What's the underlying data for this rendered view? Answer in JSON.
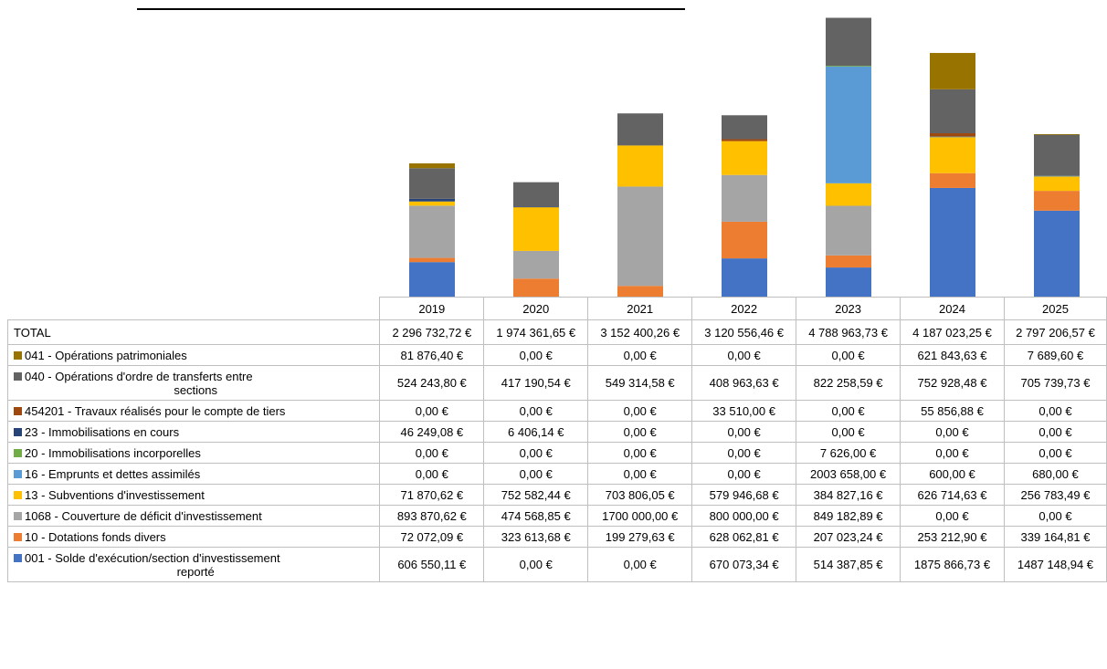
{
  "chart_data": {
    "type": "bar",
    "stacked": true,
    "title": "",
    "xlabel": "",
    "ylabel": "",
    "ylim": [
      0,
      5000000
    ],
    "grid": false,
    "legend": "data table",
    "categories": [
      "2019",
      "2020",
      "2021",
      "2022",
      "2023",
      "2024",
      "2025"
    ],
    "total_label": "TOTAL",
    "totals": [
      "2 296 732,72 €",
      "1 974 361,65 €",
      "3 152 400,26 €",
      "3 120 556,46 €",
      "4 788 963,73 €",
      "4 187 023,25 €",
      "2 797 206,57 €"
    ],
    "series": [
      {
        "name": "001 - Solde d'exécution/section d'investissement reporté",
        "label_lines": [
          "001 - Solde d'exécution/section d'investissement",
          "reporté"
        ],
        "color": "#4472c4",
        "values": [
          606550.11,
          0,
          0,
          670073.34,
          514387.85,
          1875866.73,
          1487148.94
        ],
        "labels": [
          "606 550,11 €",
          "0,00 €",
          "0,00 €",
          "670 073,34 €",
          "514 387,85 €",
          "1875 866,73 €",
          "1487 148,94 €"
        ]
      },
      {
        "name": "10 - Dotations fonds divers",
        "color": "#ed7d31",
        "values": [
          72072.09,
          323613.68,
          199279.63,
          628062.81,
          207023.24,
          253212.9,
          339164.81
        ],
        "labels": [
          "72 072,09 €",
          "323 613,68 €",
          "199 279,63 €",
          "628 062,81 €",
          "207 023,24 €",
          "253 212,90 €",
          "339 164,81 €"
        ]
      },
      {
        "name": "1068 - Couverture de déficit d'investissement",
        "color": "#a5a5a5",
        "values": [
          893870.62,
          474568.85,
          1700000,
          800000,
          849182.89,
          0,
          0
        ],
        "labels": [
          "893 870,62 €",
          "474 568,85 €",
          "1700 000,00 €",
          "800 000,00 €",
          "849 182,89 €",
          "0,00 €",
          "0,00 €"
        ]
      },
      {
        "name": "13 - Subventions d'investissement",
        "color": "#ffc000",
        "values": [
          71870.62,
          752582.44,
          703806.05,
          579946.68,
          384827.16,
          626714.63,
          256783.49
        ],
        "labels": [
          "71 870,62 €",
          "752 582,44 €",
          "703 806,05 €",
          "579 946,68 €",
          "384 827,16 €",
          "626 714,63 €",
          "256 783,49 €"
        ]
      },
      {
        "name": "16 - Emprunts et dettes assimilés",
        "color": "#5b9bd5",
        "values": [
          0,
          0,
          0,
          0,
          2003658,
          600,
          680
        ],
        "labels": [
          "0,00 €",
          "0,00 €",
          "0,00 €",
          "0,00 €",
          "2003 658,00 €",
          "600,00 €",
          "680,00 €"
        ]
      },
      {
        "name": "20 - Immobilisations incorporelles",
        "color": "#70ad47",
        "values": [
          0,
          0,
          0,
          0,
          7626,
          0,
          0
        ],
        "labels": [
          "0,00 €",
          "0,00 €",
          "0,00 €",
          "0,00 €",
          "7 626,00 €",
          "0,00 €",
          "0,00 €"
        ]
      },
      {
        "name": "23 - Immobilisations en cours",
        "color": "#264478",
        "values": [
          46249.08,
          6406.14,
          0,
          0,
          0,
          0,
          0
        ],
        "labels": [
          "46 249,08 €",
          "6 406,14 €",
          "0,00 €",
          "0,00 €",
          "0,00 €",
          "0,00 €",
          "0,00 €"
        ]
      },
      {
        "name": "454201 - Travaux réalisés pour le compte de tiers",
        "color": "#9e480e",
        "values": [
          0,
          0,
          0,
          33510,
          0,
          55856.88,
          0
        ],
        "labels": [
          "0,00 €",
          "0,00 €",
          "0,00 €",
          "33 510,00 €",
          "0,00 €",
          "55 856,88 €",
          "0,00 €"
        ]
      },
      {
        "name": "040 - Opérations d'ordre de transferts entre sections",
        "label_lines": [
          "040 - Opérations d'ordre de transferts entre",
          "sections"
        ],
        "color": "#636363",
        "values": [
          524243.8,
          417190.54,
          549314.58,
          408963.63,
          822258.59,
          752928.48,
          705739.73
        ],
        "labels": [
          "524 243,80 €",
          "417 190,54 €",
          "549 314,58 €",
          "408 963,63 €",
          "822 258,59 €",
          "752 928,48 €",
          "705 739,73 €"
        ]
      },
      {
        "name": "041 - Opérations patrimoniales",
        "color": "#997300",
        "values": [
          81876.4,
          0,
          0,
          0,
          0,
          621843.63,
          7689.6
        ],
        "labels": [
          "81 876,40 €",
          "0,00 €",
          "0,00 €",
          "0,00 €",
          "0,00 €",
          "621 843,63 €",
          "7 689,60 €"
        ]
      }
    ]
  }
}
